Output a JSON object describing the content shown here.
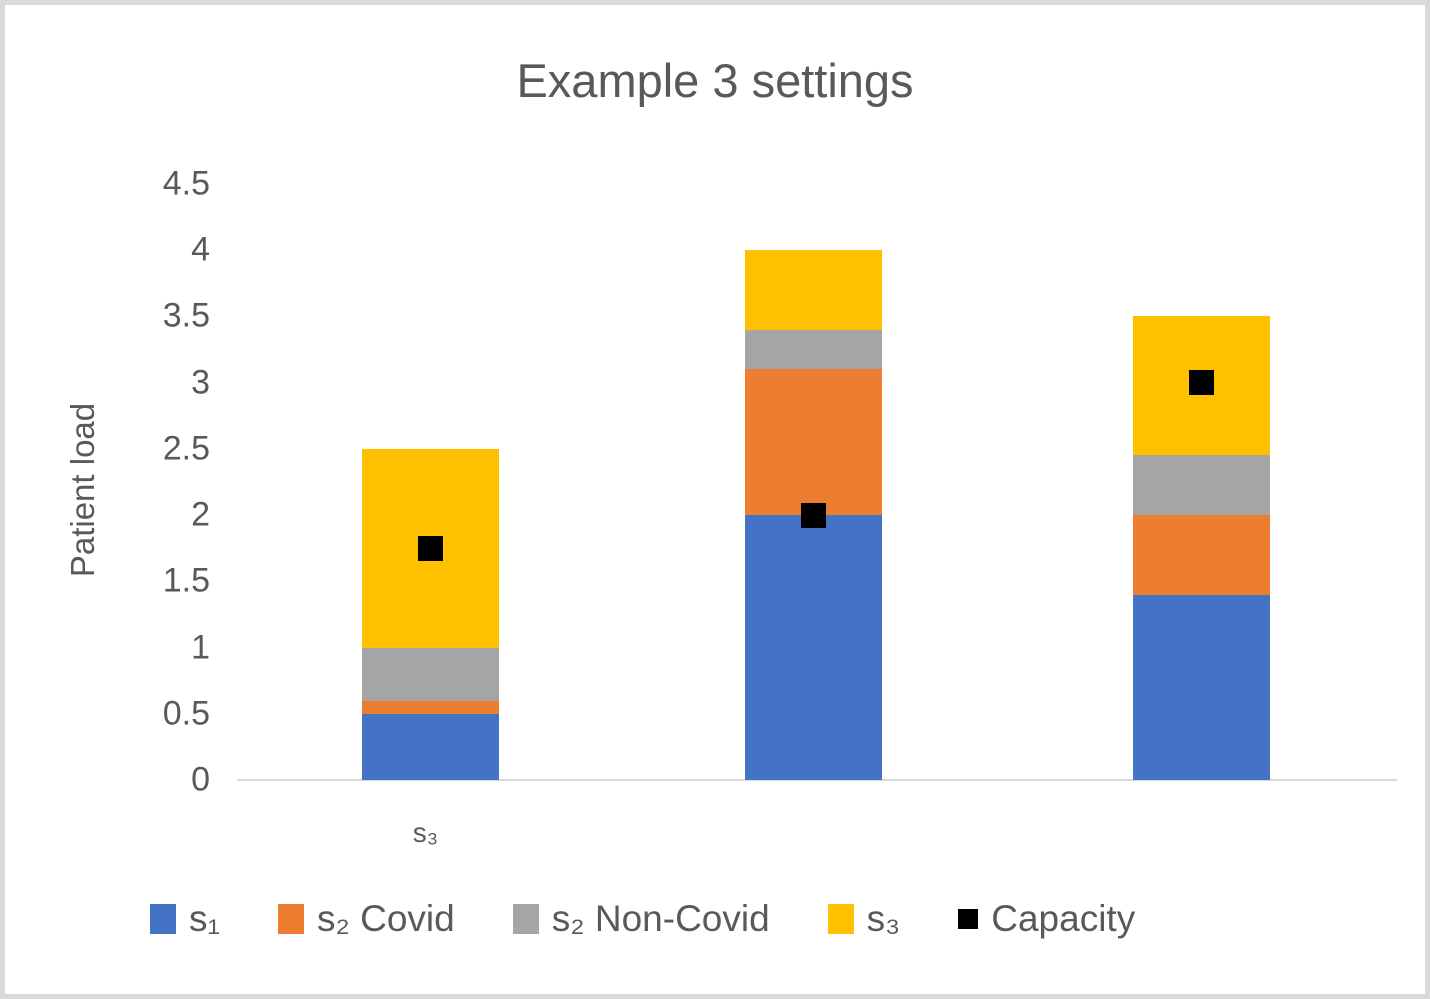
{
  "title": "Example 3 settings",
  "chart_data": {
    "type": "bar",
    "stacked": true,
    "title": "Example 3 settings",
    "xlabel": "",
    "ylabel": "Patient load",
    "ylim": [
      0,
      4.5
    ],
    "y_tick_labels": [
      "0",
      "0.5",
      "1",
      "1.5",
      "2",
      "2.5",
      "3",
      "3.5",
      "4",
      "4.5"
    ],
    "y_tick_values": [
      0,
      0.5,
      1,
      1.5,
      2,
      2.5,
      3,
      3.5,
      4,
      4.5
    ],
    "categories": [
      "s₃",
      "",
      ""
    ],
    "series": [
      {
        "name": "s₁",
        "color": "#4472C4",
        "values": [
          0.5,
          2.0,
          1.4
        ]
      },
      {
        "name": "s₂ Covid",
        "color": "#ED7D31",
        "values": [
          0.1,
          1.1,
          0.6
        ]
      },
      {
        "name": "s₂ Non-Covid",
        "color": "#A5A5A5",
        "values": [
          0.4,
          0.3,
          0.45
        ]
      },
      {
        "name": "s₃",
        "color": "#FFC000",
        "values": [
          1.5,
          0.6,
          1.05
        ]
      }
    ],
    "markers": {
      "name": "Capacity",
      "color": "#000000",
      "values": [
        1.75,
        2.0,
        3.0
      ]
    },
    "bar_totals": [
      2.5,
      4.0,
      3.5
    ],
    "grid": false,
    "legend_position": "bottom"
  },
  "colors": {
    "text": "#595959",
    "axis_line": "#d9d9d9",
    "s1": "#4472C4",
    "s2_covid": "#ED7D31",
    "s2_non_covid": "#A5A5A5",
    "s3": "#FFC000",
    "capacity": "#000000"
  }
}
